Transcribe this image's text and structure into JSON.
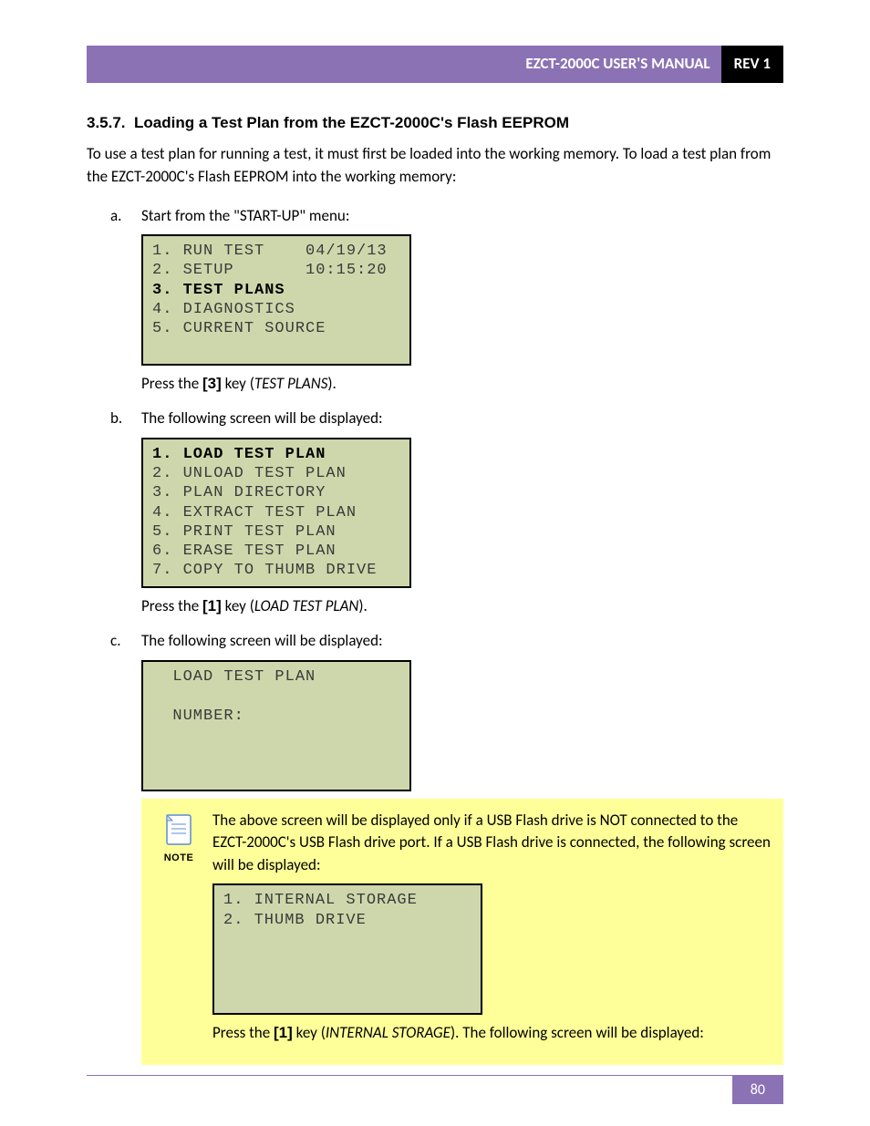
{
  "header": {
    "title": "EZCT-2000C USER'S MANUAL",
    "rev": "REV 1"
  },
  "section": {
    "number": "3.5.7.",
    "title": "Loading a Test Plan from the EZCT-2000C's Flash EEPROM"
  },
  "intro": "To use a test plan for running a test, it must first be loaded into the working memory. To load a test plan from the EZCT-2000C's Flash EEPROM into the working memory:",
  "steps": {
    "a": {
      "letter": "a.",
      "text": "Start from the \"START-UP\" menu:",
      "lcd": "1. RUN TEST    04/19/13\n2. SETUP       10:15:20\n3. TEST PLANS\n4. DIAGNOSTICS\n5. CURRENT SOURCE\n\n",
      "lcd_bold_line": 2,
      "press_pre": "Press the ",
      "press_key": "[3]",
      "press_mid": " key (",
      "press_label": "TEST PLANS",
      "press_post": ")."
    },
    "b": {
      "letter": "b.",
      "text": "The following screen will be displayed:",
      "lcd": "1. LOAD TEST PLAN\n2. UNLOAD TEST PLAN\n3. PLAN DIRECTORY\n4. EXTRACT TEST PLAN\n5. PRINT TEST PLAN\n6. ERASE TEST PLAN\n7. COPY TO THUMB DRIVE",
      "lcd_bold_line": 0,
      "press_pre": "Press the ",
      "press_key": "[1]",
      "press_mid": " key (",
      "press_label": "LOAD TEST PLAN",
      "press_post": ")."
    },
    "c": {
      "letter": "c.",
      "text": "The following screen will be displayed:",
      "lcd": "  LOAD TEST PLAN\n\n  NUMBER:\n\n\n\n"
    }
  },
  "note": {
    "label": "NOTE",
    "text1": "The above screen will be displayed only if a USB Flash drive is NOT connected to the EZCT-2000C's USB Flash drive port. If a USB Flash drive is connected, the following screen will be displayed:",
    "lcd": "1. INTERNAL STORAGE\n2. THUMB DRIVE\n\n\n\n\n",
    "press_pre": "Press the ",
    "press_key": "[1]",
    "press_mid": " key (",
    "press_label": "INTERNAL STORAGE",
    "press_post": "). The following screen will be displayed:"
  },
  "footer": {
    "page": "80"
  },
  "colors": {
    "purple": "#8b72b4",
    "lcd_bg": "#ced7ab",
    "note_bg": "#ffff99"
  }
}
